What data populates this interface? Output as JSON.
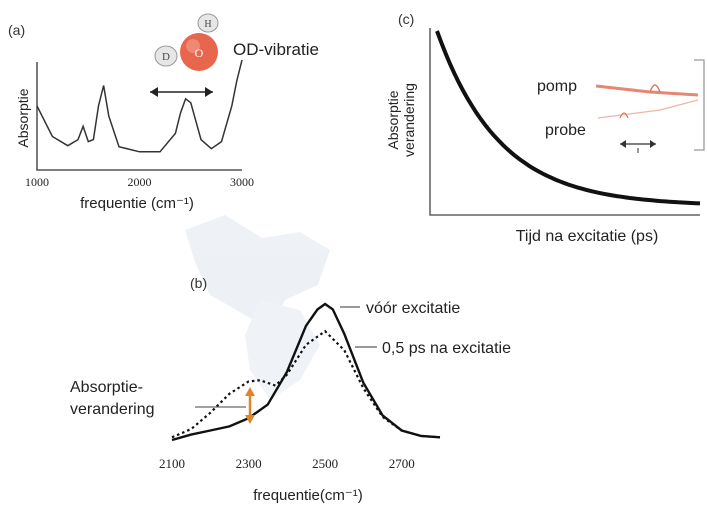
{
  "panel_a": {
    "label": "(a)",
    "molecule": {
      "o": "O",
      "d": "D",
      "h": "H"
    },
    "mode_label": "OD-vibratie",
    "chart_data": {
      "type": "line",
      "ylabel": "Absorptie",
      "xlabel": "frequentie (cm⁻¹)",
      "ticks": [
        "1000",
        "2000",
        "3000"
      ],
      "xlim": [
        1000,
        3000
      ],
      "ylim": [
        0,
        1
      ],
      "x": [
        1000,
        1150,
        1300,
        1400,
        1450,
        1500,
        1550,
        1600,
        1650,
        1700,
        1800,
        2000,
        2200,
        2350,
        2400,
        2450,
        2500,
        2550,
        2600,
        2700,
        2800,
        2900,
        2950,
        3000
      ],
      "y": [
        0.55,
        0.25,
        0.16,
        0.22,
        0.35,
        0.2,
        0.22,
        0.55,
        0.75,
        0.45,
        0.15,
        0.1,
        0.1,
        0.28,
        0.48,
        0.62,
        0.58,
        0.4,
        0.22,
        0.13,
        0.2,
        0.55,
        0.8,
        1.0
      ]
    }
  },
  "panel_b": {
    "label": "(b)",
    "chart_data": {
      "type": "line",
      "xlabel": "frequentie(cm⁻¹)",
      "ticks": [
        "2100",
        "2300",
        "2500",
        "2700"
      ],
      "xlim": [
        2100,
        2800
      ],
      "ylim": [
        0,
        1
      ],
      "series": [
        {
          "name": "vóór excitatie",
          "style": "solid",
          "x": [
            2100,
            2150,
            2200,
            2250,
            2300,
            2350,
            2400,
            2450,
            2480,
            2500,
            2520,
            2550,
            2600,
            2650,
            2700,
            2750,
            2800
          ],
          "y": [
            0.0,
            0.04,
            0.07,
            0.1,
            0.16,
            0.26,
            0.5,
            0.84,
            0.96,
            1.0,
            0.96,
            0.78,
            0.42,
            0.18,
            0.07,
            0.03,
            0.02
          ]
        },
        {
          "name": "0,5 ps na excitatie",
          "style": "dotted",
          "x": [
            2100,
            2150,
            2200,
            2250,
            2300,
            2330,
            2370,
            2400,
            2450,
            2500,
            2550,
            2600,
            2650,
            2700,
            2750,
            2800
          ],
          "y": [
            0.02,
            0.08,
            0.2,
            0.34,
            0.43,
            0.44,
            0.4,
            0.48,
            0.7,
            0.8,
            0.66,
            0.38,
            0.17,
            0.07,
            0.03,
            0.02
          ]
        }
      ],
      "annotation": "Absorptie-verandering",
      "annotation_lines": [
        "Absorptie-",
        "verandering"
      ],
      "annotation_color": "#e0852e"
    }
  },
  "panel_c": {
    "label": "(c)",
    "chart_data": {
      "type": "line",
      "ylabel_lines": [
        "Absorptie",
        "verandering"
      ],
      "xlabel": "Tijd na excitatie (ps)",
      "shape": "exponential decay",
      "series_color": "#111111"
    },
    "pump_label": "pomp",
    "probe_label": "probe",
    "beam_color": "#e0735a"
  }
}
